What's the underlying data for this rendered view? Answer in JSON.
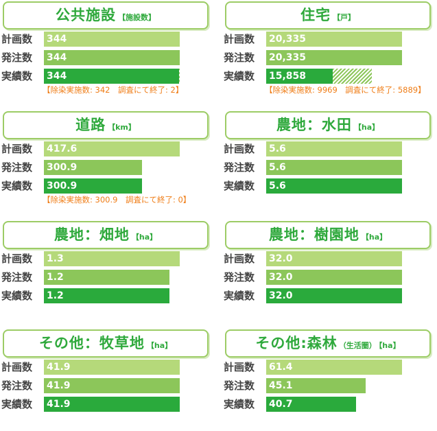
{
  "colors": {
    "plan": "#b5d97a",
    "order": "#8cc65a",
    "actual": "#2aaa3c",
    "title": "#2fa93c",
    "note": "#ef7d17"
  },
  "row_labels": [
    "計画数",
    "発注数",
    "実績数"
  ],
  "chart_data": [
    {
      "type": "bar",
      "title": "公共施設",
      "unit": "【施設数】",
      "categories": [
        "計画数",
        "発注数",
        "実績数"
      ],
      "values": [
        344,
        344,
        344
      ],
      "labels": [
        "344",
        "344",
        "344"
      ],
      "xlim": [
        0,
        344
      ],
      "note": "【除染実施数: 342　調査にて終了: 2】",
      "breakdown": [
        342,
        2
      ]
    },
    {
      "type": "bar",
      "title": "住宅",
      "unit": "【戸】",
      "categories": [
        "計画数",
        "発注数",
        "実績数"
      ],
      "values": [
        20335,
        20335,
        15858
      ],
      "labels": [
        "20,335",
        "20,335",
        "15,858"
      ],
      "xlim": [
        0,
        20335
      ],
      "note": "【除染実施数: 9969　調査にて終了: 5889】",
      "breakdown": [
        9969,
        5889
      ]
    },
    {
      "type": "bar",
      "title": "道路",
      "unit": "【km】",
      "categories": [
        "計画数",
        "発注数",
        "実績数"
      ],
      "values": [
        417.6,
        300.9,
        300.9
      ],
      "labels": [
        "417.6",
        "300.9",
        "300.9"
      ],
      "xlim": [
        0,
        417.6
      ],
      "note": "【除染実施数: 300.9　調査にて終了: 0】"
    },
    {
      "type": "bar",
      "title": "農地：水田",
      "unit": "【ha】",
      "categories": [
        "計画数",
        "発注数",
        "実績数"
      ],
      "values": [
        5.6,
        5.6,
        5.6
      ],
      "labels": [
        "5.6",
        "5.6",
        "5.6"
      ],
      "xlim": [
        0,
        5.6
      ]
    },
    {
      "type": "bar",
      "title": "農地：畑地",
      "unit": "【ha】",
      "categories": [
        "計画数",
        "発注数",
        "実績数"
      ],
      "values": [
        1.3,
        1.2,
        1.2
      ],
      "labels": [
        "1.3",
        "1.2",
        "1.2"
      ],
      "xlim": [
        0,
        1.3
      ]
    },
    {
      "type": "bar",
      "title": "農地：樹園地",
      "unit": "【ha】",
      "categories": [
        "計画数",
        "発注数",
        "実績数"
      ],
      "values": [
        32.0,
        32.0,
        32.0
      ],
      "labels": [
        "32.0",
        "32.0",
        "32.0"
      ],
      "xlim": [
        0,
        32.0
      ]
    },
    {
      "type": "bar",
      "title": "その他：牧草地",
      "unit": "【ha】",
      "categories": [
        "計画数",
        "発注数",
        "実績数"
      ],
      "values": [
        41.9,
        41.9,
        41.9
      ],
      "labels": [
        "41.9",
        "41.9",
        "41.9"
      ],
      "xlim": [
        0,
        41.9
      ]
    },
    {
      "type": "bar",
      "title": "その他:森林",
      "subtitle": "（生活圏）",
      "unit": "【ha】",
      "categories": [
        "計画数",
        "発注数",
        "実績数"
      ],
      "values": [
        61.4,
        45.1,
        40.7
      ],
      "labels": [
        "61.4",
        "45.1",
        "40.7"
      ],
      "xlim": [
        0,
        61.4
      ]
    }
  ]
}
